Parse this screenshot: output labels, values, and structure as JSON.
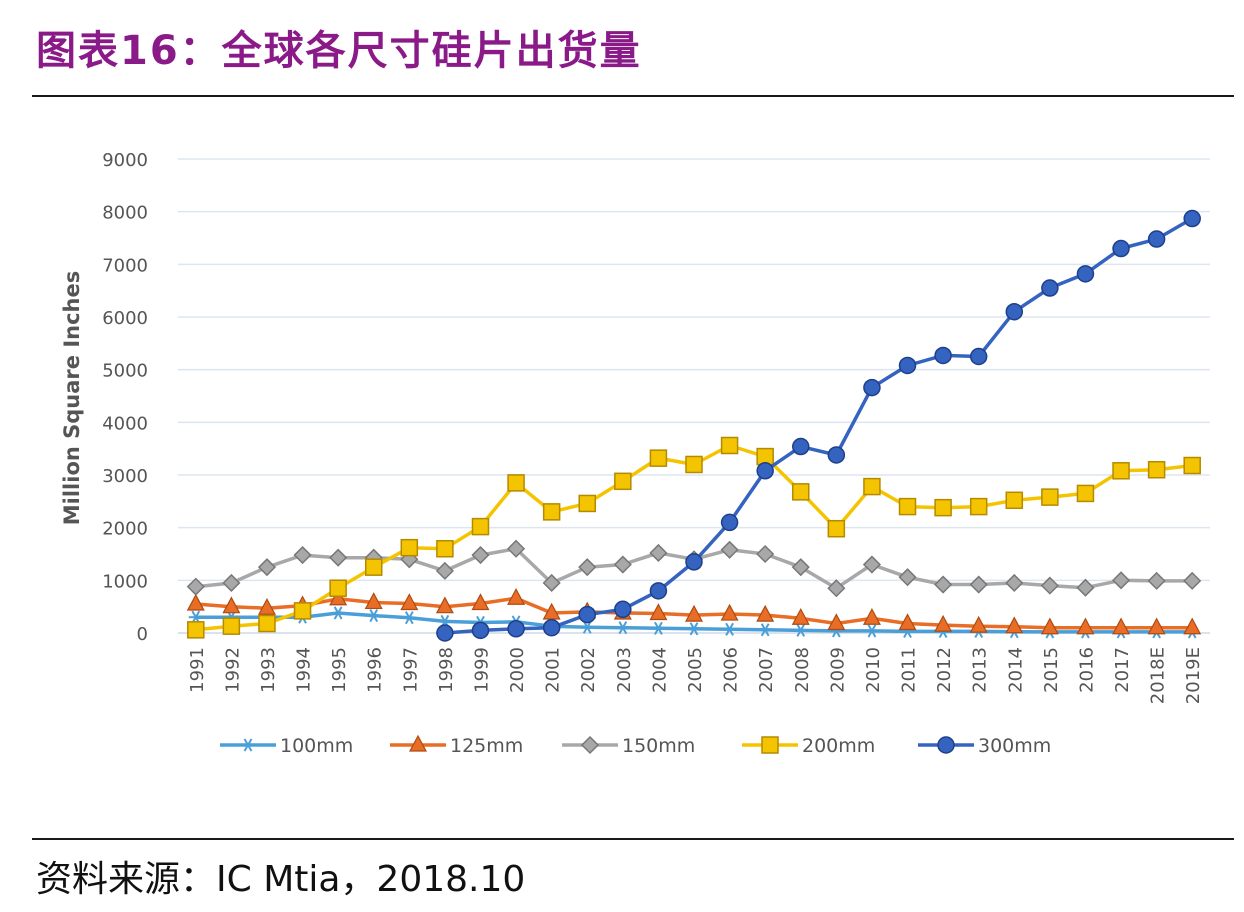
{
  "header": {
    "title": "图表16：全球各尺寸硅片出货量"
  },
  "footer": {
    "source": "资料来源：IC Mtia，2018.10"
  },
  "chart_data": {
    "type": "line",
    "title": "图表16：全球各尺寸硅片出货量",
    "xlabel": "",
    "ylabel": "Million Square Inches",
    "ylim": [
      0,
      9000
    ],
    "yticks": [
      0,
      1000,
      2000,
      3000,
      4000,
      5000,
      6000,
      7000,
      8000,
      9000
    ],
    "grid": true,
    "legend": "bottom",
    "categories": [
      "1991",
      "1992",
      "1993",
      "1994",
      "1995",
      "1996",
      "1997",
      "1998",
      "1999",
      "2000",
      "2001",
      "2002",
      "2003",
      "2004",
      "2005",
      "2006",
      "2007",
      "2008",
      "2009",
      "2010",
      "2011",
      "2012",
      "2013",
      "2014",
      "2015",
      "2016",
      "2017",
      "2018E",
      "2019E"
    ],
    "series": [
      {
        "name": "100mm",
        "color": "#4a9fd8",
        "marker": "star",
        "values": [
          300,
          300,
          300,
          300,
          380,
          330,
          290,
          220,
          200,
          210,
          130,
          110,
          100,
          90,
          80,
          70,
          60,
          50,
          40,
          40,
          30,
          30,
          30,
          25,
          20,
          20,
          20,
          20,
          20
        ]
      },
      {
        "name": "125mm",
        "color": "#e86d26",
        "marker": "triangle",
        "values": [
          550,
          500,
          470,
          520,
          650,
          580,
          560,
          500,
          560,
          660,
          380,
          400,
          380,
          370,
          340,
          360,
          340,
          280,
          180,
          280,
          180,
          150,
          130,
          120,
          100,
          100,
          100,
          100,
          100
        ]
      },
      {
        "name": "150mm",
        "color": "#a8a8a8",
        "marker": "diamond",
        "values": [
          880,
          950,
          1250,
          1480,
          1430,
          1430,
          1400,
          1180,
          1480,
          1600,
          950,
          1250,
          1300,
          1520,
          1400,
          1580,
          1500,
          1250,
          850,
          1300,
          1060,
          920,
          920,
          950,
          900,
          860,
          1000,
          990,
          990
        ]
      },
      {
        "name": "200mm",
        "color": "#f5c400",
        "marker": "square",
        "values": [
          60,
          130,
          180,
          420,
          850,
          1250,
          1620,
          1600,
          2020,
          2850,
          2300,
          2460,
          2880,
          3320,
          3200,
          3560,
          3350,
          2680,
          1980,
          2780,
          2400,
          2380,
          2400,
          2520,
          2580,
          2650,
          3080,
          3100,
          3180
        ]
      },
      {
        "name": "300mm",
        "color": "#3563c0",
        "marker": "circle",
        "values": [
          null,
          null,
          null,
          null,
          null,
          null,
          null,
          0,
          50,
          80,
          100,
          350,
          450,
          800,
          1350,
          2100,
          3080,
          3540,
          3380,
          4660,
          5080,
          5270,
          5250,
          6100,
          6550,
          6820,
          7300,
          7480,
          7870
        ]
      }
    ]
  }
}
